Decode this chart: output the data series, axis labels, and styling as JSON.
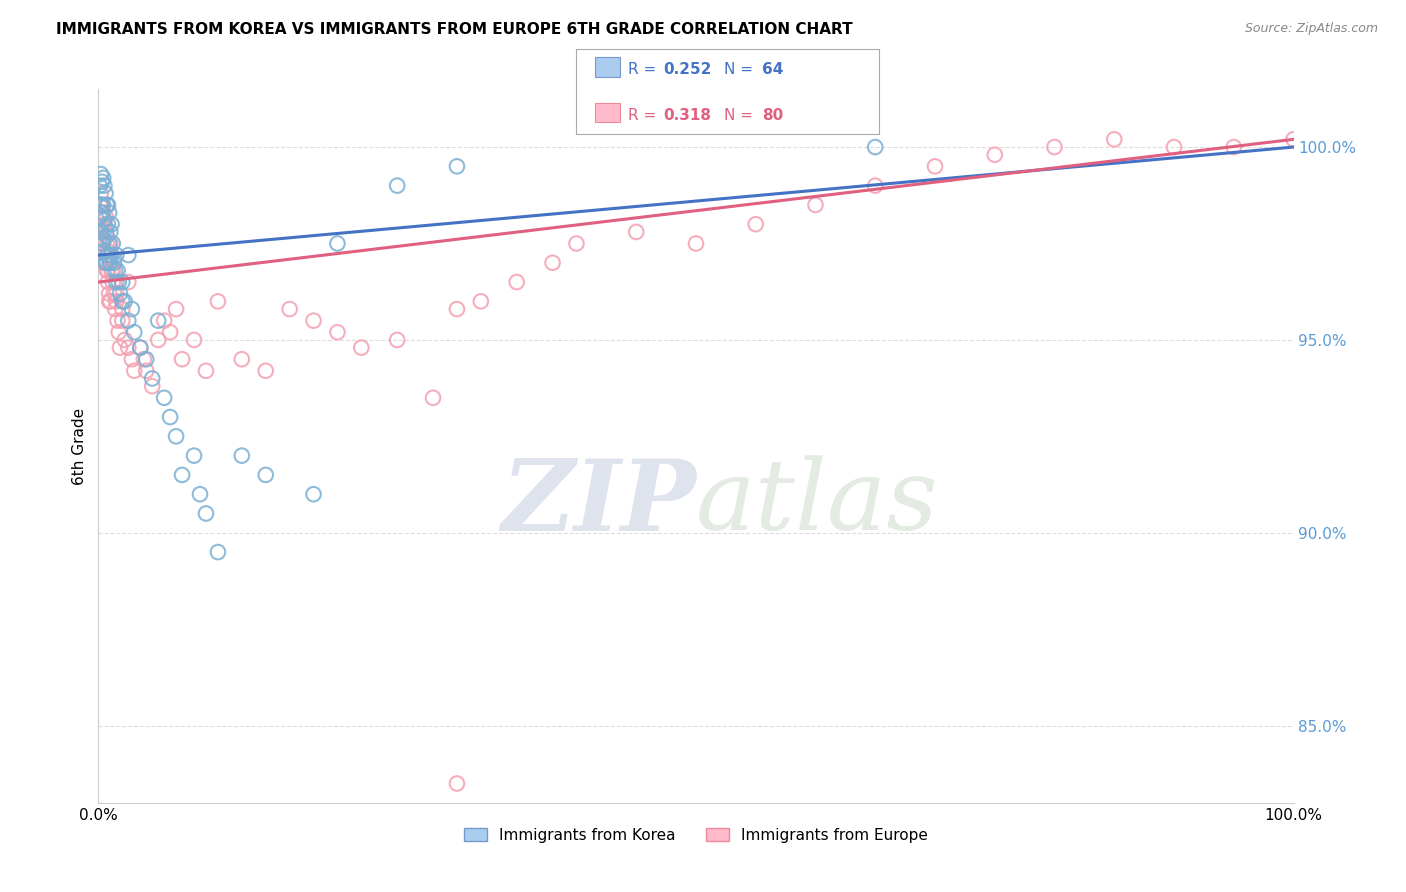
{
  "title": "IMMIGRANTS FROM KOREA VS IMMIGRANTS FROM EUROPE 6TH GRADE CORRELATION CHART",
  "source": "Source: ZipAtlas.com",
  "ylabel": "6th Grade",
  "xlim": [
    0.0,
    1.0
  ],
  "ylim": [
    83.0,
    101.5
  ],
  "korea_color": "#7BAFD4",
  "europe_color": "#F4A0B0",
  "korea_line_color": "#4472C4",
  "europe_line_color": "#E06080",
  "korea_R": 0.252,
  "korea_N": 64,
  "europe_R": 0.318,
  "europe_N": 80,
  "korea_x": [
    0.001,
    0.001,
    0.002,
    0.002,
    0.002,
    0.003,
    0.003,
    0.003,
    0.004,
    0.004,
    0.004,
    0.005,
    0.005,
    0.005,
    0.006,
    0.006,
    0.006,
    0.007,
    0.007,
    0.007,
    0.008,
    0.008,
    0.009,
    0.009,
    0.01,
    0.01,
    0.011,
    0.011,
    0.012,
    0.013,
    0.014,
    0.015,
    0.016,
    0.017,
    0.018,
    0.02,
    0.022,
    0.025,
    0.028,
    0.03,
    0.035,
    0.04,
    0.045,
    0.05,
    0.055,
    0.06,
    0.065,
    0.07,
    0.08,
    0.085,
    0.09,
    0.1,
    0.12,
    0.14,
    0.18,
    0.2,
    0.25,
    0.3,
    0.015,
    0.02,
    0.025,
    0.008,
    0.01,
    0.65
  ],
  "korea_y": [
    99.0,
    98.2,
    99.3,
    98.5,
    97.8,
    99.1,
    98.3,
    97.5,
    99.2,
    98.5,
    97.6,
    99.0,
    98.1,
    97.3,
    98.8,
    97.9,
    97.0,
    98.5,
    97.7,
    97.0,
    98.0,
    97.2,
    98.3,
    97.5,
    97.8,
    97.0,
    98.0,
    97.2,
    97.5,
    97.0,
    96.8,
    97.2,
    96.8,
    96.5,
    96.2,
    96.5,
    96.0,
    95.5,
    95.8,
    95.2,
    94.8,
    94.5,
    94.0,
    95.5,
    93.5,
    93.0,
    92.5,
    91.5,
    92.0,
    91.0,
    90.5,
    89.5,
    92.0,
    91.5,
    91.0,
    97.5,
    99.0,
    99.5,
    96.5,
    96.0,
    97.2,
    98.5,
    97.0,
    100.0
  ],
  "europe_x": [
    0.001,
    0.001,
    0.002,
    0.002,
    0.003,
    0.003,
    0.004,
    0.004,
    0.005,
    0.005,
    0.006,
    0.006,
    0.007,
    0.007,
    0.008,
    0.008,
    0.009,
    0.009,
    0.01,
    0.01,
    0.011,
    0.012,
    0.013,
    0.014,
    0.015,
    0.016,
    0.017,
    0.018,
    0.02,
    0.022,
    0.025,
    0.028,
    0.03,
    0.035,
    0.038,
    0.04,
    0.045,
    0.05,
    0.055,
    0.06,
    0.065,
    0.07,
    0.08,
    0.09,
    0.1,
    0.12,
    0.14,
    0.16,
    0.18,
    0.2,
    0.22,
    0.25,
    0.28,
    0.3,
    0.32,
    0.35,
    0.38,
    0.4,
    0.45,
    0.5,
    0.55,
    0.6,
    0.65,
    0.7,
    0.75,
    0.8,
    0.85,
    0.9,
    0.95,
    1.0,
    0.006,
    0.007,
    0.008,
    0.009,
    0.01,
    0.012,
    0.015,
    0.02,
    0.025,
    0.3
  ],
  "europe_y": [
    98.5,
    97.8,
    98.8,
    97.9,
    98.5,
    97.5,
    98.3,
    97.5,
    98.0,
    97.0,
    97.8,
    97.0,
    97.5,
    96.8,
    97.3,
    96.5,
    97.0,
    96.2,
    97.2,
    96.0,
    96.8,
    96.5,
    96.2,
    95.8,
    96.0,
    95.5,
    95.2,
    94.8,
    95.5,
    95.0,
    94.8,
    94.5,
    94.2,
    94.8,
    94.5,
    94.2,
    93.8,
    95.0,
    95.5,
    95.2,
    95.8,
    94.5,
    95.0,
    94.2,
    96.0,
    94.5,
    94.2,
    95.8,
    95.5,
    95.2,
    94.8,
    95.0,
    93.5,
    95.8,
    96.0,
    96.5,
    97.0,
    97.5,
    97.8,
    97.5,
    98.0,
    98.5,
    99.0,
    99.5,
    99.8,
    100.0,
    100.2,
    100.0,
    100.0,
    100.2,
    98.2,
    97.2,
    96.8,
    96.0,
    97.5,
    96.8,
    96.2,
    95.8,
    96.5,
    83.5
  ],
  "y_ticks": [
    85.0,
    90.0,
    95.0,
    100.0
  ],
  "y_tick_labels_right": [
    "85.0%",
    "90.0%",
    "95.0%",
    "100.0%"
  ],
  "watermark_zip": "ZIP",
  "watermark_atlas": "atlas",
  "legend_korea_label": "Immigrants from Korea",
  "legend_europe_label": "Immigrants from Europe",
  "background_color": "#ffffff",
  "grid_color": "#dddddd",
  "right_axis_color": "#5B9BD5"
}
